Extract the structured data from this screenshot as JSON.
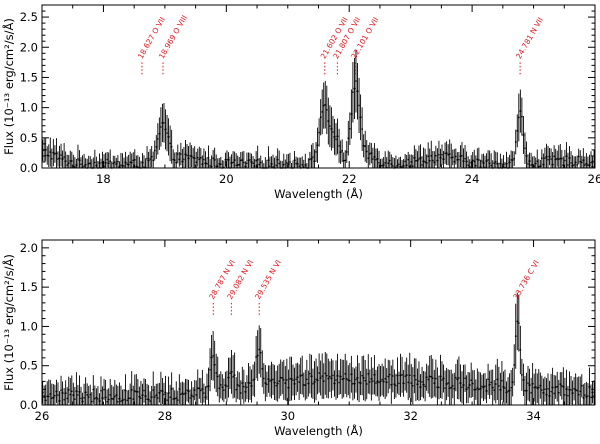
{
  "chart_data": [
    {
      "type": "scatter",
      "xlabel": "Wavelength (Å)",
      "ylabel": "Flux (10⁻¹³ erg/cm²/s/Å)",
      "xlim": [
        17.0,
        26.0
      ],
      "ylim": [
        0.0,
        2.7
      ],
      "xticks": [
        18,
        20,
        22,
        24,
        26
      ],
      "xtick_labels": [
        "18",
        "20",
        "22",
        "24",
        "26"
      ],
      "yticks": [
        0.0,
        0.5,
        1.0,
        1.5,
        2.0,
        2.5
      ],
      "ytick_labels": [
        "0.0",
        "0.5",
        "1.0",
        "1.5",
        "2.0",
        "2.5"
      ],
      "grid": false,
      "lines": [
        {
          "label": "18.627 O VII",
          "x": 18.627,
          "y": 1.75
        },
        {
          "label": "18.969 O VIII",
          "x": 18.969,
          "y": 1.75
        },
        {
          "label": "21.602 O VII",
          "x": 21.602,
          "y": 1.75
        },
        {
          "label": "21.807 O VII",
          "x": 21.807,
          "y": 1.75
        },
        {
          "label": "22.101 O VII",
          "x": 22.101,
          "y": 1.75
        },
        {
          "label": "24.781 N VII",
          "x": 24.781,
          "y": 1.75
        }
      ],
      "series": [
        {
          "style": "errorbar",
          "features": [
            {
              "x": 17.0,
              "amp": 0.2,
              "width": 0.25
            },
            {
              "x": 18.97,
              "amp": 0.6,
              "width": 0.08
            },
            {
              "x": 19.3,
              "amp": 0.1,
              "width": 0.3
            },
            {
              "x": 21.6,
              "amp": 1.0,
              "width": 0.08
            },
            {
              "x": 21.8,
              "amp": 0.4,
              "width": 0.06
            },
            {
              "x": 22.1,
              "amp": 1.3,
              "width": 0.07
            },
            {
              "x": 22.3,
              "amp": 0.15,
              "width": 0.15
            },
            {
              "x": 23.5,
              "amp": 0.12,
              "width": 0.3
            },
            {
              "x": 24.78,
              "amp": 0.85,
              "width": 0.05
            },
            {
              "x": 25.5,
              "amp": 0.06,
              "width": 0.4
            }
          ],
          "baseline": 0.06,
          "step": 0.025
        }
      ]
    },
    {
      "type": "scatter",
      "xlabel": "Wavelength (Å)",
      "ylabel": "Flux (10⁻¹³ erg/cm²/s/Å)",
      "xlim": [
        26.0,
        35.0
      ],
      "ylim": [
        0.0,
        2.1
      ],
      "xticks": [
        26,
        28,
        30,
        32,
        34
      ],
      "xtick_labels": [
        "26",
        "28",
        "30",
        "32",
        "34"
      ],
      "yticks": [
        0.0,
        0.5,
        1.0,
        1.5,
        2.0
      ],
      "ytick_labels": [
        "0.0",
        "0.5",
        "1.0",
        "1.5",
        "2.0"
      ],
      "grid": false,
      "lines": [
        {
          "label": "28.787 N VI",
          "x": 28.787,
          "y": 1.3
        },
        {
          "label": "29.082 N VI",
          "x": 29.082,
          "y": 1.3
        },
        {
          "label": "29.535 N VI",
          "x": 29.535,
          "y": 1.3
        },
        {
          "label": "33.736 C VI",
          "x": 33.736,
          "y": 1.3
        }
      ],
      "series": [
        {
          "style": "errorbar",
          "features": [
            {
              "x": 28.79,
              "amp": 0.45,
              "width": 0.05
            },
            {
              "x": 29.08,
              "amp": 0.25,
              "width": 0.05
            },
            {
              "x": 29.53,
              "amp": 0.45,
              "width": 0.05
            },
            {
              "x": 33.74,
              "amp": 0.85,
              "width": 0.04
            },
            {
              "x": 30.5,
              "amp": 0.15,
              "width": 1.0
            },
            {
              "x": 32.5,
              "amp": 0.15,
              "width": 1.5
            }
          ],
          "baseline": 0.12,
          "step": 0.025
        }
      ]
    }
  ]
}
